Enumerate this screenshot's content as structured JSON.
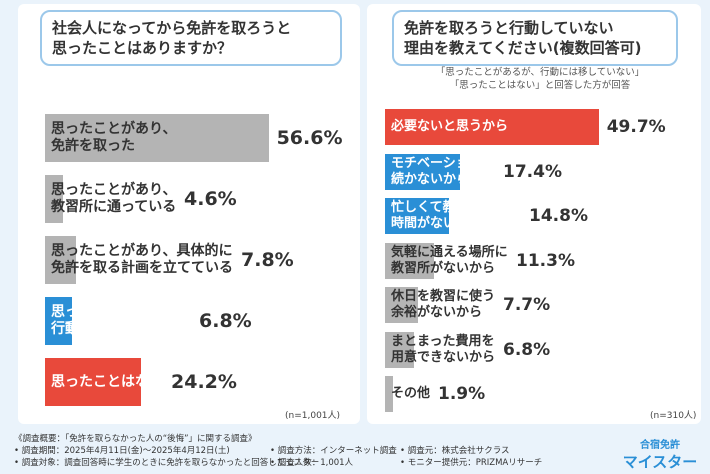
{
  "chart_data": [
    {
      "type": "bar",
      "title": "社会人になってから免許を取ろうと\n思ったことはありますか？",
      "categories": [
        "思ったことがあり、\n免許を取った",
        "思ったことがあり、\n教習所に通っている",
        "思ったことがあり、具体的に\n免許を取る計画を立てている",
        "思ったことがあるが、\n行動には移していない",
        "思ったことはない"
      ],
      "values": [
        56.6,
        4.6,
        7.8,
        6.8,
        24.2
      ],
      "value_labels": [
        "56.6%",
        "4.6%",
        "7.8%",
        "6.8%",
        "24.2%"
      ],
      "colors": [
        "#b4b4b4",
        "#b4b4b4",
        "#b4b4b4",
        "#2a8fd6",
        "#e8493b"
      ],
      "note": "(n=1,001人)"
    },
    {
      "type": "bar",
      "title": "免許を取ろうと行動していない\n理由を教えてください(複数回答可)",
      "subtitle": "「思ったことがあるが、行動には移していない」\n「思ったことはない」と回答した方が回答",
      "categories": [
        "必要ないと思うから",
        "モチベーションが\n続かないから",
        "忙しくて教習所に通う\n時間がないから",
        "気軽に通える場所に\n教習所がないから",
        "休日を教習に使う\n余裕がないから",
        "まとまった費用を\n用意できないから",
        "その他"
      ],
      "values": [
        49.7,
        17.4,
        14.8,
        11.3,
        7.7,
        6.8,
        1.9
      ],
      "value_labels": [
        "49.7%",
        "17.4%",
        "14.8%",
        "11.3%",
        "7.7%",
        "6.8%",
        "1.9%"
      ],
      "colors": [
        "#e8493b",
        "#2a8fd6",
        "#2a8fd6",
        "#b4b4b4",
        "#b4b4b4",
        "#b4b4b4",
        "#b4b4b4"
      ],
      "note": "(n=310人)"
    }
  ],
  "footer": {
    "heading": "《調査概要：「免許を取らなかった人の“後悔”」に関する調査》",
    "rows": [
      [
        "• 調査期間：2025年4月11日(金)～2025年4月12日(土)",
        "• 調査方法：インターネット調査",
        "• 調査元：株式会社サクラス"
      ],
      [
        "• 調査対象：調査回答時に学生のときに免許を取らなかったと回答したモニター",
        "• 調査人数：1,001人",
        "• モニター提供元：PRIZMAリサーチ"
      ]
    ]
  },
  "logo": {
    "top": "合宿免許",
    "bottom": "マイスター"
  }
}
